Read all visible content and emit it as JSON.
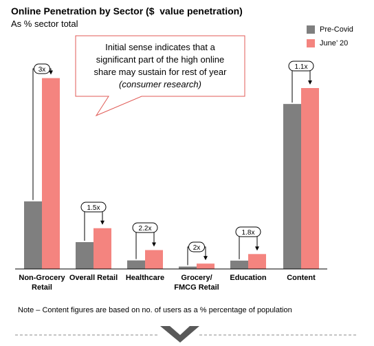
{
  "chart_data": {
    "type": "bar",
    "title": "Online Penetration by Sector ($  value penetration)",
    "subtitle": "As % sector total",
    "categories": [
      "Non-Grocery\nRetail",
      "Overall Retail",
      "Healthcare",
      "Grocery/\nFMCG Retail",
      "Education",
      "Content"
    ],
    "series": [
      {
        "name": "Pre-Covid",
        "color": "#7f7f7f",
        "values": [
          34,
          13.5,
          4.3,
          1.2,
          4.2,
          83
        ]
      },
      {
        "name": "June’ 20",
        "color": "#f4847f",
        "values": [
          96,
          20.5,
          9.5,
          2.7,
          7.5,
          91
        ]
      }
    ],
    "multipliers": [
      "3x",
      "1.5x",
      "2.2x",
      "2x",
      "1.8x",
      "1.1x"
    ],
    "ylim": [
      0,
      100
    ],
    "legend_position": "top-right",
    "grid": false,
    "callout": {
      "lines": [
        "Initial sense indicates that a",
        "significant part of the high online",
        "share may sustain for rest of year"
      ],
      "source": "(consumer research)"
    },
    "note": "Note – Content figures are based on no. of users as a % percentage of population"
  }
}
